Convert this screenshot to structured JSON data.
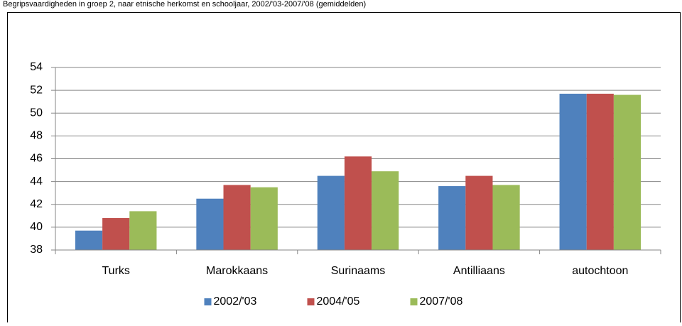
{
  "chart_data": {
    "type": "bar",
    "title": "Begripsvaardigheden in groep 2, naar etnische herkomst en schooljaar, 2002/'03-2007/'08 (gemiddelden)",
    "categories": [
      "Turks",
      "Marokkaans",
      "Surinaams",
      "Antilliaans",
      "autochtoon"
    ],
    "series": [
      {
        "name": "2002/'03",
        "color": "#4f81bd",
        "values": [
          39.7,
          42.5,
          44.5,
          43.6,
          51.7
        ]
      },
      {
        "name": "2004/'05",
        "color": "#c0504d",
        "values": [
          40.8,
          43.7,
          46.2,
          44.5,
          51.7
        ]
      },
      {
        "name": "2007/'08",
        "color": "#9bbb59",
        "values": [
          41.4,
          43.5,
          44.9,
          43.7,
          51.6
        ]
      }
    ],
    "ylim": [
      38,
      54
    ],
    "yticks": [
      38,
      40,
      42,
      44,
      46,
      48,
      50,
      52,
      54
    ],
    "grid": true,
    "legend": "bottom"
  }
}
